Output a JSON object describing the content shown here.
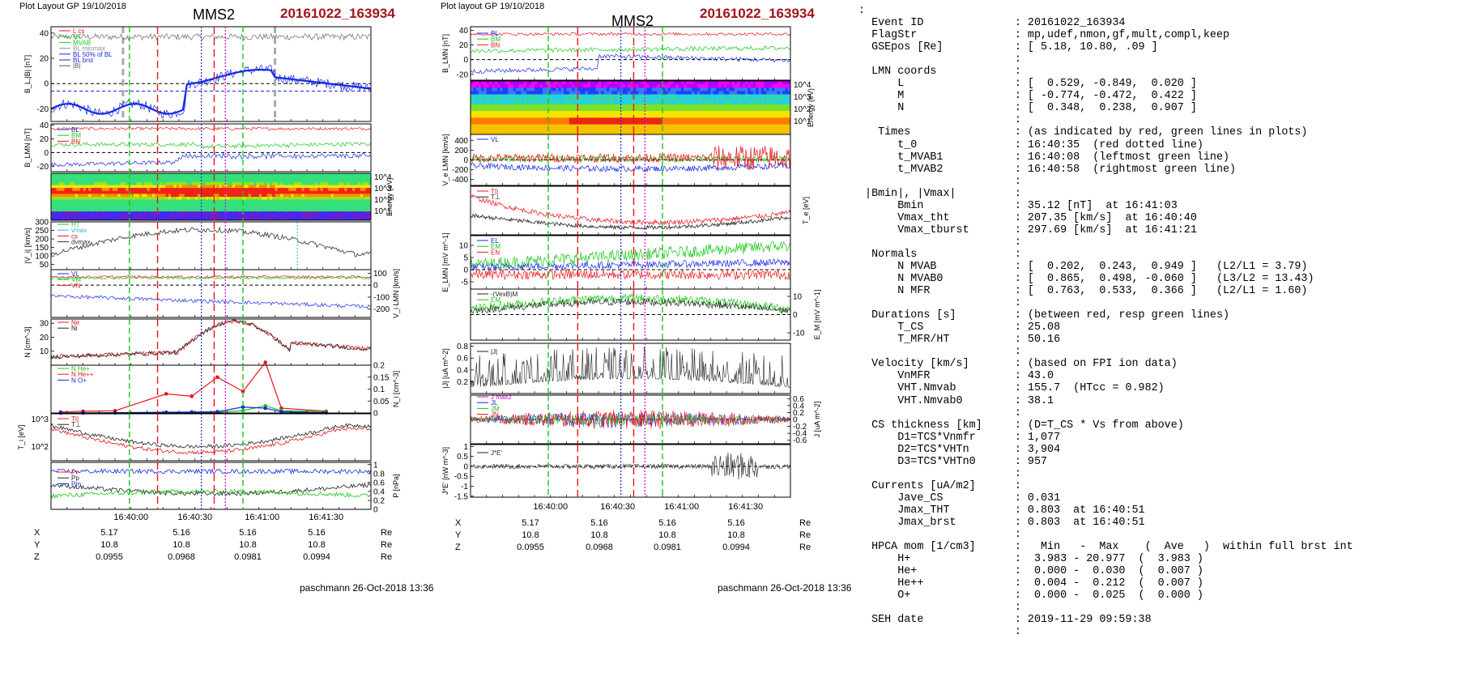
{
  "left_figure": {
    "header": "Plot Layout GP 19/10/2018",
    "spacecraft": "MMS2",
    "event": "20161022_163934",
    "footer": "paschmann 26-Oct-2018 13:36",
    "time_ticks": [
      "16:40:00",
      "16:40:30",
      "16:41:00",
      "16:41:30"
    ],
    "coords": {
      "rows": [
        {
          "name": "X",
          "values": [
            "5.17",
            "5.16",
            "5.16",
            "5.16"
          ],
          "unit": "Re"
        },
        {
          "name": "Y",
          "values": [
            "10.8",
            "10.8",
            "10.8",
            "10.8"
          ],
          "unit": "Re"
        },
        {
          "name": "Z",
          "values": [
            "0.0955",
            "0.0968",
            "0.0981",
            "0.0994"
          ],
          "unit": "Re"
        }
      ]
    }
  },
  "right_figure": {
    "header": "Plot layout GP 19/10/2018",
    "spacecraft": "MMS2",
    "event": "20161022_163934",
    "footer": "paschmann 26-Oct-2018 13:36",
    "time_ticks": [
      "16:40:00",
      "16:40:30",
      "16:41:00",
      "16:41:30"
    ],
    "coords": {
      "rows": [
        {
          "name": "X",
          "values": [
            "5.17",
            "5.16",
            "5.16",
            "5.16"
          ],
          "unit": "Re"
        },
        {
          "name": "Y",
          "values": [
            "10.8",
            "10.8",
            "10.8",
            "10.8"
          ],
          "unit": "Re"
        },
        {
          "name": "Z",
          "values": [
            "0.0955",
            "0.0968",
            "0.0981",
            "0.0994"
          ],
          "unit": "Re"
        }
      ]
    }
  },
  "colors": {
    "event_red": "#a0151d",
    "red": "#e8141c",
    "green": "#18c818",
    "blue": "#1428e6",
    "gray": "#909090",
    "magenta": "#d400d4"
  },
  "chart_data": [
    {
      "type": "line",
      "id": "L1",
      "ylabel": "B_L,|B| [nT]",
      "ylim": [
        -30,
        45
      ],
      "yticks": [
        -20,
        0,
        20,
        40
      ],
      "legend": [
        "L cs",
        "HT",
        "MVAB",
        "BL minmax",
        "BL 50% of BL",
        "BL brst",
        "|B|"
      ],
      "series": [
        {
          "name": "|B|",
          "color": "#7a7a7a"
        },
        {
          "name": "BL brst",
          "color": "#1428e6",
          "width": 2.2
        }
      ]
    },
    {
      "type": "line",
      "id": "L2",
      "ylabel": "B_LMN [nT]",
      "ylim": [
        -28,
        42
      ],
      "yticks": [
        -20,
        0,
        20,
        40
      ],
      "legend": [
        "BL",
        "BM",
        "BN"
      ],
      "series": [
        {
          "name": "BL",
          "color": "#e8141c"
        },
        {
          "name": "BM",
          "color": "#18c818"
        },
        {
          "name": "BN",
          "color": "#1428e6"
        }
      ]
    },
    {
      "type": "heatmap",
      "id": "L3",
      "ylabel": "Energy (eV)",
      "yticks": [
        "10^4",
        "10^3",
        "10^2",
        "10^1"
      ]
    },
    {
      "type": "line",
      "id": "L4",
      "ylabel": "|V_i| [km/s]",
      "ylim": [
        20,
        300
      ],
      "yticks": [
        300,
        250,
        200,
        150,
        100,
        50
      ],
      "legend": [
        "HT",
        "vmax",
        "cs",
        "dvmax"
      ],
      "series": [
        {
          "name": "|Vi|",
          "color": "#333333"
        }
      ]
    },
    {
      "type": "line",
      "id": "L5",
      "ylabel": "V_i LMN [km/s]",
      "ylim": [
        -270,
        130
      ],
      "yticks": [
        100,
        0,
        -100,
        -200
      ],
      "legend": [
        "VL",
        "VM",
        "VN"
      ],
      "series": [
        {
          "name": "VL",
          "color": "#e8141c"
        },
        {
          "name": "VM",
          "color": "#18c818"
        },
        {
          "name": "VN",
          "color": "#1428e6"
        }
      ]
    },
    {
      "type": "line",
      "id": "L6",
      "ylabel": "N [cm^-3]",
      "ylim": [
        0,
        33
      ],
      "yticks": [
        10,
        20,
        30
      ],
      "legend": [
        "Ne",
        "Ni"
      ],
      "series": [
        {
          "name": "Ne",
          "color": "#e8141c"
        },
        {
          "name": "Ni",
          "color": "#222222"
        }
      ]
    },
    {
      "type": "scatter",
      "id": "L7",
      "ylabel": "N_i [cm^-3]",
      "ylim": [
        0,
        0.2
      ],
      "yticks": [
        0.0,
        0.05,
        0.1,
        0.15,
        0.2
      ],
      "legend": [
        "N He+",
        "N He++",
        "N O+"
      ],
      "series": [
        {
          "name": "N He++",
          "color": "#e8141c",
          "values": [
            0.004,
            0.007,
            0.009,
            0.08,
            0.07,
            0.15,
            0.09,
            0.212,
            0.02,
            0.007
          ]
        },
        {
          "name": "N He+",
          "color": "#18c818",
          "values": [
            0.0,
            0.0,
            0.001,
            0.002,
            0.002,
            0.003,
            0.01,
            0.03,
            0.01,
            0.005
          ]
        },
        {
          "name": "N O+",
          "color": "#1428e6",
          "values": [
            0.0,
            0.0,
            0.001,
            0.003,
            0.004,
            0.005,
            0.025,
            0.02,
            0.005,
            0.001
          ]
        }
      ]
    },
    {
      "type": "line",
      "id": "L8",
      "ylabel": "T_i [eV]",
      "yticks": [
        "10^3",
        "10^2"
      ],
      "legend": [
        "T||",
        "T⊥"
      ],
      "series": [
        {
          "name": "T||",
          "color": "#e8141c"
        },
        {
          "name": "T⊥",
          "color": "#222222"
        }
      ]
    },
    {
      "type": "line",
      "id": "L9",
      "ylabel": "P [nPa]",
      "ylim": [
        0,
        1.05
      ],
      "yticks": [
        0.0,
        0.2,
        0.4,
        0.6,
        0.8,
        1.0
      ],
      "legend": [
        "Pt",
        "Pp",
        "Pm"
      ],
      "series": [
        {
          "name": "Pt",
          "color": "#1428e6"
        },
        {
          "name": "Pp",
          "color": "#222222"
        },
        {
          "name": "Pm",
          "color": "#18c818"
        }
      ]
    },
    {
      "type": "line",
      "id": "R1",
      "ylabel": "B_LMN [nT]",
      "ylim": [
        -28,
        45
      ],
      "yticks": [
        -20,
        0,
        20,
        40
      ],
      "legend": [
        "BL",
        "BM",
        "BN"
      ],
      "series": [
        {
          "name": "BL",
          "color": "#e8141c"
        },
        {
          "name": "BM",
          "color": "#18c818"
        },
        {
          "name": "BN",
          "color": "#1428e6"
        }
      ]
    },
    {
      "type": "heatmap",
      "id": "R2",
      "ylabel": "Energy (eV)",
      "yticks": [
        "10^4",
        "10^3",
        "10^2",
        "10^1"
      ]
    },
    {
      "type": "line",
      "id": "R3",
      "ylabel": "V_e LMN [km/s]",
      "ylim": [
        -520,
        520
      ],
      "yticks": [
        400,
        200,
        0,
        -200,
        -400
      ],
      "legend": [
        "VL"
      ],
      "series": [
        {
          "name": "VL",
          "color": "#e8141c"
        },
        {
          "name": "VM",
          "color": "#18c818"
        },
        {
          "name": "VN",
          "color": "#1428e6"
        }
      ]
    },
    {
      "type": "line",
      "id": "R4",
      "ylabel": "T_e [eV]",
      "legend": [
        "T||",
        "T⊥"
      ],
      "series": [
        {
          "name": "T||",
          "color": "#e8141c"
        },
        {
          "name": "T⊥",
          "color": "#222222"
        }
      ]
    },
    {
      "type": "line",
      "id": "R5",
      "ylabel": "E_LMN [mV m^-1]",
      "ylim": [
        -8,
        14
      ],
      "yticks": [
        10,
        5,
        0,
        -5
      ],
      "legend": [
        "EL",
        "EM",
        "EN"
      ],
      "series": [
        {
          "name": "EL",
          "color": "#e8141c"
        },
        {
          "name": "EM",
          "color": "#18c818"
        },
        {
          "name": "EN",
          "color": "#1428e6"
        }
      ]
    },
    {
      "type": "line",
      "id": "R6",
      "ylabel": "E_M [mV m^-1]",
      "ylim": [
        -14,
        14
      ],
      "yticks": [
        10,
        0,
        -10
      ],
      "legend": [
        "-(VexB)M",
        "EM"
      ],
      "series": [
        {
          "name": "EM",
          "color": "#18c818"
        },
        {
          "name": "-(VexB)M",
          "color": "#222222"
        }
      ]
    },
    {
      "type": "line",
      "id": "R7",
      "ylabel": "|J| [uA m^-2]",
      "ylim": [
        0,
        0.85
      ],
      "yticks": [
        0.8,
        0.6,
        0.4,
        0.2
      ],
      "legend": [
        "|J|"
      ],
      "series": [
        {
          "name": "|J|",
          "color": "#222222"
        }
      ]
    },
    {
      "type": "line",
      "id": "R8",
      "ylabel": "J [uA m^-2]",
      "ylim": [
        -0.7,
        0.7
      ],
      "yticks": [
        0.6,
        0.4,
        0.2,
        0.0,
        -0.2,
        -0.4,
        -0.6
      ],
      "legend": [
        "J max2",
        "JL",
        "JM",
        "JN"
      ],
      "series": [
        {
          "name": "JL",
          "color": "#e8141c"
        },
        {
          "name": "JM",
          "color": "#18c818"
        },
        {
          "name": "JN",
          "color": "#1428e6"
        }
      ]
    },
    {
      "type": "line",
      "id": "R9",
      "ylabel": "J*E' [nW m^-3]",
      "ylim": [
        -1.55,
        1.1
      ],
      "yticks": [
        1.0,
        0.5,
        0.0,
        -0.5,
        -1.0,
        -1.5
      ],
      "legend": [
        "J*E'"
      ],
      "series": [
        {
          "name": "J*E'",
          "color": "#222222"
        }
      ]
    }
  ],
  "info_lines": [
    ":",
    "  Event ID              : 20161022_163934",
    "  FlagStr               : mp,udef,nmon,gf,mult,compl,keep",
    "  GSEpos [Re]           : [ 5.18, 10.80, .09 ]",
    "                        :",
    "  LMN coords            :",
    "      L                 : [  0.529, -0.849,  0.020 ]",
    "      M                 : [ -0.774, -0.472,  0.422 ]",
    "      N                 : [  0.348,  0.238,  0.907 ]",
    "                        :",
    "   Times                : (as indicated by red, green lines in plots)",
    "      t_0               : 16:40:35  (red dotted line)",
    "      t_MVAB1           : 16:40:08  (leftmost green line)",
    "      t_MVAB2           : 16:40:58  (rightmost green line)",
    "                        :",
    " |Bmin|, |Vmax|         :",
    "      Bmin              : 35.12 [nT]  at 16:41:03",
    "      Vmax_tht          : 207.35 [km/s]  at 16:40:40",
    "      Vmax_tburst       : 297.69 [km/s]  at 16:41:21",
    "                        :",
    "  Normals               :",
    "      N MVAB            : [  0.202,  0.243,  0.949 ]   (L2/L1 = 3.79)",
    "      N MVAB0           : [  0.865,  0.498, -0.060 ]   (L3/L2 = 13.43)",
    "      N MFR             : [  0.763,  0.533,  0.366 ]   (L2/L1 = 1.60)",
    "                        :",
    "  Durations [s]         : (between red, resp green lines)",
    "      T_CS              : 25.08",
    "      T_MFR/HT          : 50.16",
    "                        :",
    "  Velocity [km/s]       : (based on FPI ion data)",
    "      VnMFR             : 43.0",
    "      VHT.Nmvab         : 155.7  (HTcc = 0.982)",
    "      VHT.Nmvab0        : 38.1",
    "                        :",
    "  CS thickness [km]     : (D=T_CS * Vs from above)",
    "      D1=TCS*Vnmfr      : 1,077",
    "      D2=TCS*VHTn       : 3,904",
    "      D3=TCS*VHTn0      : 957",
    "                        :",
    "  Currents [uA/m2]      :",
    "      Jave_CS           : 0.031",
    "      Jmax_THT          : 0.803  at 16:40:51",
    "      Jmax_brst         : 0.803  at 16:40:51",
    "                        :",
    "  HPCA mom [1/cm3]      :   Min   -  Max    (  Ave   )  within full brst int",
    "      H+                :  3.983 - 20.977  (  3.983 )",
    "      He+               :  0.000 -  0.030  (  0.007 )",
    "      He++              :  0.004 -  0.212  (  0.007 )",
    "      O+                :  0.000 -  0.025  (  0.000 )",
    "                        :",
    "  SEH date              : 2019-11-29 09:59:38",
    "                        :"
  ]
}
